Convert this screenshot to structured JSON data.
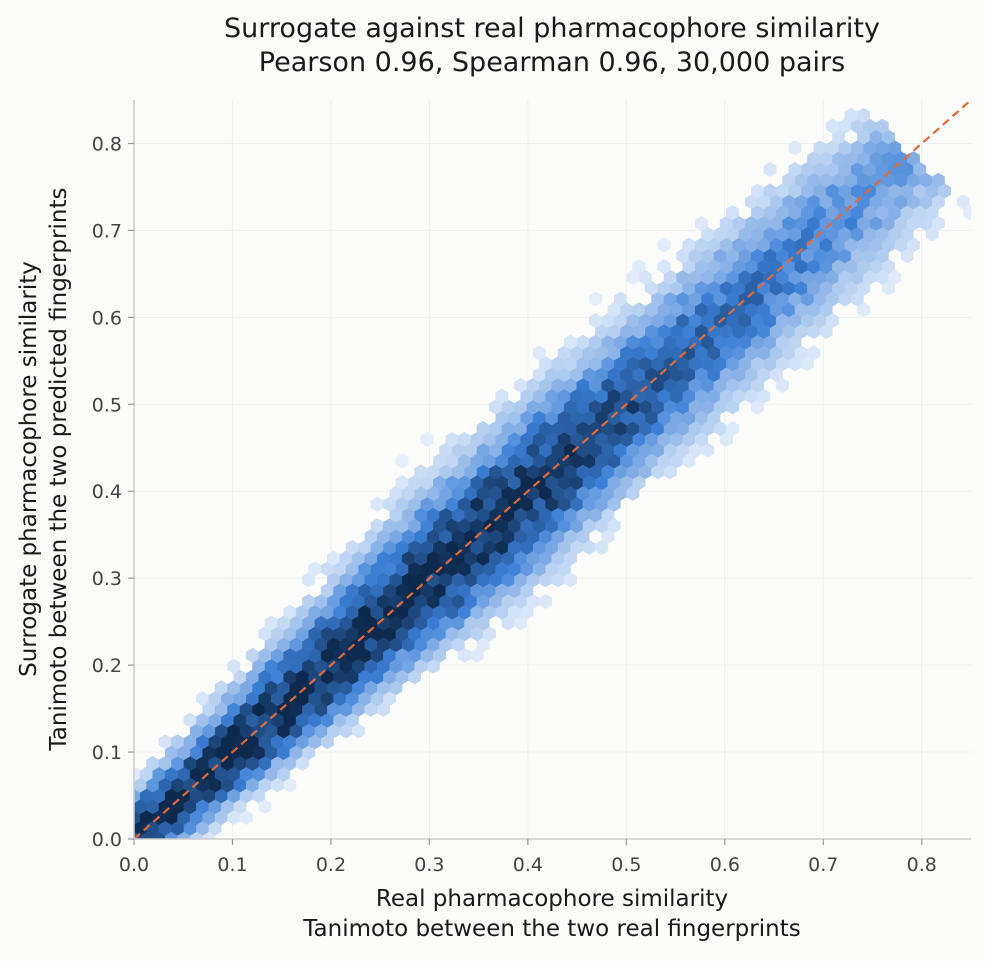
{
  "chart_data": {
    "type": "hexbin",
    "title": "Surrogate against real pharmacophore similarity",
    "subtitle": "Pearson 0.96, Spearman 0.96, 30,000 pairs",
    "xlabel": "Real pharmacophore similarity",
    "xlabel_sub": "Tanimoto between the two real fingerprints",
    "ylabel": "Surrogate pharmacophore similarity",
    "ylabel_sub": "Tanimoto between the two predicted fingerprints",
    "xlim": [
      0,
      0.85
    ],
    "ylim": [
      0,
      0.85
    ],
    "xticks": [
      "0.0",
      "0.1",
      "0.2",
      "0.3",
      "0.4",
      "0.5",
      "0.6",
      "0.7",
      "0.8"
    ],
    "yticks": [
      "0.0",
      "0.1",
      "0.2",
      "0.3",
      "0.4",
      "0.5",
      "0.6",
      "0.7",
      "0.8"
    ],
    "grid": true,
    "n_pairs": 30000,
    "pearson": 0.96,
    "spearman": 0.96,
    "density_ridge": {
      "x": [
        0.0,
        0.1,
        0.2,
        0.3,
        0.4,
        0.5,
        0.6,
        0.7,
        0.78
      ],
      "y": [
        0.0,
        0.1,
        0.2,
        0.3,
        0.4,
        0.5,
        0.6,
        0.7,
        0.75
      ]
    },
    "reference_line": {
      "x": [
        0,
        0.85
      ],
      "y": [
        0,
        0.85
      ],
      "style": "dashed"
    },
    "colors": {
      "hex_low": "#eef4fd",
      "hex_mid": "#3b7fd6",
      "hex_high": "#0d2a4e",
      "reference_line": "#e06a3b",
      "grid": "#efefee",
      "axis": "#cccccc",
      "background": "#fbfbfa"
    }
  }
}
